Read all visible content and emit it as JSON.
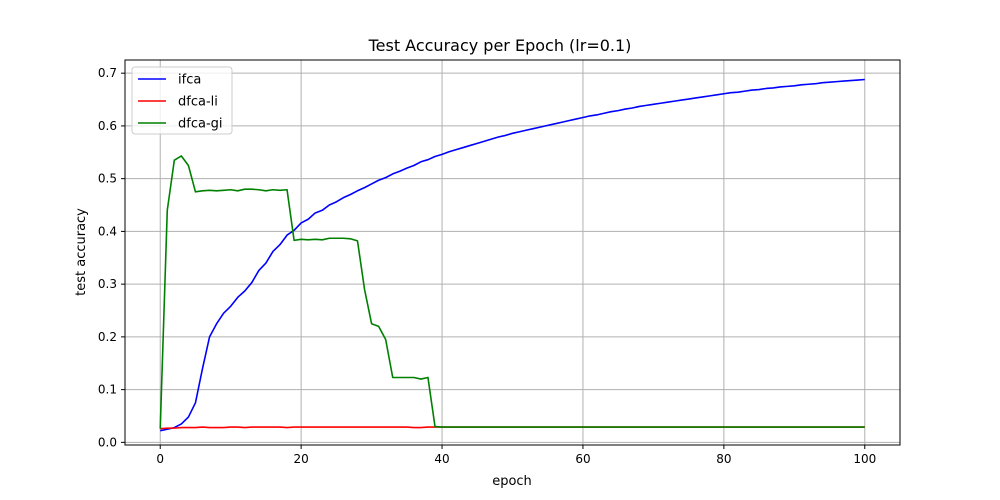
{
  "chart_data": {
    "type": "line",
    "title": "Test Accuracy per Epoch (lr=0.1)",
    "xlabel": "epoch",
    "ylabel": "test accuracy",
    "xlim": [
      -5,
      105
    ],
    "ylim": [
      -0.005,
      0.725
    ],
    "xticks": [
      0,
      20,
      40,
      60,
      80,
      100
    ],
    "yticks": [
      0.0,
      0.1,
      0.2,
      0.3,
      0.4,
      0.5,
      0.6,
      0.7
    ],
    "xtick_labels": [
      "0",
      "20",
      "40",
      "60",
      "80",
      "100"
    ],
    "ytick_labels": [
      "0.0",
      "0.1",
      "0.2",
      "0.3",
      "0.4",
      "0.5",
      "0.6",
      "0.7"
    ],
    "grid": true,
    "legend_position": "upper-left",
    "series": [
      {
        "name": "ifca",
        "color": "#0000ff",
        "x": [
          0,
          1,
          2,
          3,
          4,
          5,
          6,
          7,
          8,
          9,
          10,
          11,
          12,
          13,
          14,
          15,
          16,
          17,
          18,
          19,
          20,
          21,
          22,
          23,
          24,
          25,
          26,
          27,
          28,
          29,
          30,
          31,
          32,
          33,
          34,
          35,
          36,
          37,
          38,
          39,
          40,
          41,
          42,
          43,
          44,
          45,
          46,
          47,
          48,
          49,
          50,
          51,
          52,
          53,
          54,
          55,
          56,
          57,
          58,
          59,
          60,
          61,
          62,
          63,
          64,
          65,
          66,
          67,
          68,
          69,
          70,
          71,
          72,
          73,
          74,
          75,
          76,
          77,
          78,
          79,
          80,
          81,
          82,
          83,
          84,
          85,
          86,
          87,
          88,
          89,
          90,
          91,
          92,
          93,
          94,
          95,
          96,
          97,
          98,
          99,
          100
        ],
        "values": [
          0.022,
          0.025,
          0.028,
          0.035,
          0.048,
          0.075,
          0.14,
          0.2,
          0.225,
          0.245,
          0.258,
          0.275,
          0.287,
          0.303,
          0.326,
          0.34,
          0.362,
          0.375,
          0.393,
          0.402,
          0.416,
          0.423,
          0.435,
          0.44,
          0.45,
          0.456,
          0.464,
          0.47,
          0.477,
          0.483,
          0.49,
          0.497,
          0.502,
          0.509,
          0.514,
          0.52,
          0.525,
          0.532,
          0.536,
          0.542,
          0.546,
          0.551,
          0.555,
          0.559,
          0.563,
          0.567,
          0.571,
          0.575,
          0.579,
          0.582,
          0.586,
          0.589,
          0.592,
          0.595,
          0.598,
          0.601,
          0.604,
          0.607,
          0.61,
          0.613,
          0.616,
          0.619,
          0.621,
          0.624,
          0.627,
          0.629,
          0.632,
          0.634,
          0.637,
          0.639,
          0.641,
          0.643,
          0.645,
          0.647,
          0.649,
          0.651,
          0.653,
          0.655,
          0.657,
          0.659,
          0.661,
          0.663,
          0.664,
          0.666,
          0.668,
          0.669,
          0.671,
          0.672,
          0.674,
          0.675,
          0.676,
          0.678,
          0.679,
          0.68,
          0.682,
          0.683,
          0.684,
          0.685,
          0.686,
          0.687,
          0.688
        ]
      },
      {
        "name": "dfca-li",
        "color": "#ff0000",
        "x": [
          0,
          1,
          2,
          3,
          4,
          5,
          6,
          7,
          8,
          9,
          10,
          11,
          12,
          13,
          14,
          15,
          16,
          17,
          18,
          19,
          20,
          21,
          22,
          23,
          24,
          25,
          26,
          27,
          28,
          29,
          30,
          31,
          32,
          33,
          34,
          35,
          36,
          37,
          38,
          39,
          40,
          41,
          42,
          43,
          44,
          45,
          46,
          47,
          48,
          49,
          50,
          51,
          52,
          53,
          54,
          55,
          56,
          57,
          58,
          59,
          60,
          61,
          62,
          63,
          64,
          65,
          66,
          67,
          68,
          69,
          70,
          71,
          72,
          73,
          74,
          75,
          76,
          77,
          78,
          79,
          80,
          81,
          82,
          83,
          84,
          85,
          86,
          87,
          88,
          89,
          90,
          91,
          92,
          93,
          94,
          95,
          96,
          97,
          98,
          99,
          100
        ],
        "values": [
          0.026,
          0.027,
          0.027,
          0.028,
          0.028,
          0.028,
          0.029,
          0.028,
          0.028,
          0.028,
          0.029,
          0.029,
          0.028,
          0.029,
          0.029,
          0.029,
          0.029,
          0.029,
          0.028,
          0.029,
          0.029,
          0.029,
          0.029,
          0.029,
          0.029,
          0.029,
          0.029,
          0.029,
          0.029,
          0.029,
          0.029,
          0.029,
          0.029,
          0.029,
          0.029,
          0.029,
          0.028,
          0.028,
          0.029,
          0.029,
          0.029,
          0.029,
          0.029,
          0.029,
          0.029,
          0.029,
          0.029,
          0.029,
          0.029,
          0.029,
          0.029,
          0.029,
          0.029,
          0.029,
          0.029,
          0.029,
          0.029,
          0.029,
          0.029,
          0.029,
          0.029,
          0.029,
          0.029,
          0.029,
          0.029,
          0.029,
          0.029,
          0.029,
          0.029,
          0.029,
          0.029,
          0.029,
          0.029,
          0.029,
          0.029,
          0.029,
          0.029,
          0.029,
          0.029,
          0.029,
          0.029,
          0.029,
          0.029,
          0.029,
          0.029,
          0.029,
          0.029,
          0.029,
          0.029,
          0.029,
          0.029,
          0.029,
          0.029,
          0.029,
          0.029,
          0.029,
          0.029,
          0.029,
          0.029,
          0.029,
          0.029
        ]
      },
      {
        "name": "dfca-gi",
        "color": "#008000",
        "x": [
          0,
          1,
          2,
          3,
          4,
          5,
          6,
          7,
          8,
          9,
          10,
          11,
          12,
          13,
          14,
          15,
          16,
          17,
          18,
          19,
          20,
          21,
          22,
          23,
          24,
          25,
          26,
          27,
          28,
          29,
          30,
          31,
          32,
          33,
          34,
          35,
          36,
          37,
          38,
          39,
          40,
          41,
          42,
          43,
          44,
          45,
          46,
          47,
          48,
          49,
          50,
          51,
          52,
          53,
          54,
          55,
          56,
          57,
          58,
          59,
          60,
          61,
          62,
          63,
          64,
          65,
          66,
          67,
          68,
          69,
          70,
          71,
          72,
          73,
          74,
          75,
          76,
          77,
          78,
          79,
          80,
          81,
          82,
          83,
          84,
          85,
          86,
          87,
          88,
          89,
          90,
          91,
          92,
          93,
          94,
          95,
          96,
          97,
          98,
          99,
          100
        ],
        "values": [
          0.026,
          0.44,
          0.535,
          0.543,
          0.525,
          0.475,
          0.477,
          0.478,
          0.477,
          0.478,
          0.479,
          0.477,
          0.48,
          0.48,
          0.479,
          0.477,
          0.479,
          0.478,
          0.479,
          0.383,
          0.385,
          0.384,
          0.385,
          0.384,
          0.387,
          0.387,
          0.387,
          0.386,
          0.382,
          0.29,
          0.225,
          0.22,
          0.195,
          0.123,
          0.123,
          0.123,
          0.123,
          0.12,
          0.123,
          0.03,
          0.029,
          0.029,
          0.029,
          0.029,
          0.029,
          0.029,
          0.029,
          0.029,
          0.029,
          0.029,
          0.029,
          0.029,
          0.029,
          0.029,
          0.029,
          0.029,
          0.029,
          0.029,
          0.029,
          0.029,
          0.029,
          0.029,
          0.029,
          0.029,
          0.029,
          0.029,
          0.029,
          0.029,
          0.029,
          0.029,
          0.029,
          0.029,
          0.029,
          0.029,
          0.029,
          0.029,
          0.029,
          0.029,
          0.029,
          0.029,
          0.029,
          0.029,
          0.029,
          0.029,
          0.029,
          0.029,
          0.029,
          0.029,
          0.029,
          0.029,
          0.029,
          0.029,
          0.029,
          0.029,
          0.029,
          0.029,
          0.029,
          0.029,
          0.029,
          0.029,
          0.029
        ]
      }
    ]
  }
}
